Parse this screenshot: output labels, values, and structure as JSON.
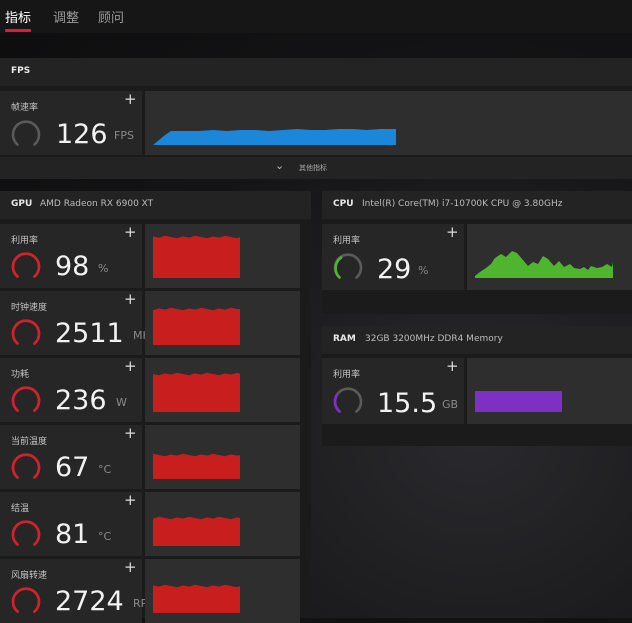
{
  "tabs": [
    {
      "label": "指标",
      "active": true
    },
    {
      "label": "调整",
      "active": false
    },
    {
      "label": "顾问",
      "active": false
    }
  ],
  "accent_color": "#e01b3a",
  "fps": {
    "title": "FPS",
    "metric_label": "帧速率",
    "value": "126",
    "unit": "FPS",
    "graph_color": "#1c86d8",
    "expand_label": "其他指标"
  },
  "gpu": {
    "title": "GPU",
    "device": "AMD Radeon RX 6900 XT",
    "metrics": [
      {
        "label": "利用率",
        "value": "98",
        "unit": "%"
      },
      {
        "label": "时钟速度",
        "value": "2511",
        "unit": "MHz"
      },
      {
        "label": "功耗",
        "value": "236",
        "unit": "W"
      },
      {
        "label": "当前温度",
        "value": "67",
        "unit": "°C"
      },
      {
        "label": "结温",
        "value": "81",
        "unit": "°C"
      },
      {
        "label": "风扇转速",
        "value": "2724",
        "unit": "RPM"
      }
    ],
    "graph_color": "#c81e1e"
  },
  "cpu": {
    "title": "CPU",
    "device": "Intel(R) Core(TM) i7-10700K CPU @ 3.80GHz",
    "metric_label": "利用率",
    "value": "29",
    "unit": "%",
    "graph_color": "#4fb52e"
  },
  "ram": {
    "title": "RAM",
    "device": "32GB 3200MHz DDR4 Memory",
    "metric_label": "利用率",
    "value": "15.5",
    "unit": "GB",
    "graph_color": "#7e2fc4"
  },
  "plus_symbol": "+"
}
